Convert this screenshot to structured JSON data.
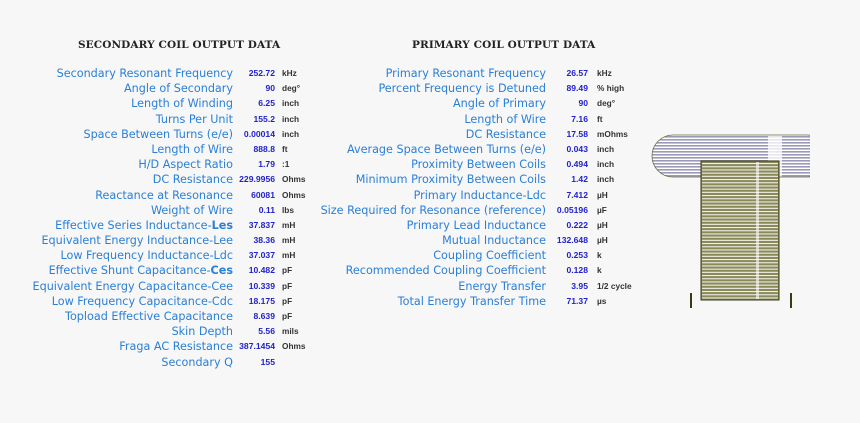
{
  "secondary": {
    "title": "SECONDARY COIL OUTPUT DATA",
    "rows": [
      {
        "label": "Secondary Resonant Frequency",
        "value": "252.72",
        "unit": "kHz"
      },
      {
        "label": "Angle of Secondary",
        "value": "90",
        "unit": "deg°"
      },
      {
        "label": "Length of Winding",
        "value": "6.25",
        "unit": "inch"
      },
      {
        "label": "Turns Per Unit",
        "value": "155.2",
        "unit": "inch"
      },
      {
        "label": "Space Between Turns (e/e)",
        "value": "0.00014",
        "unit": "inch"
      },
      {
        "label": "Length of Wire",
        "value": "888.8",
        "unit": "ft"
      },
      {
        "label": "H/D Aspect Ratio",
        "value": "1.79",
        "unit": ":1"
      },
      {
        "label": "DC Resistance",
        "value": "229.9956",
        "unit": "Ohms"
      },
      {
        "label": "Reactance at Resonance",
        "value": "60081",
        "unit": "Ohms"
      },
      {
        "label": "Weight of Wire",
        "value": "0.11",
        "unit": "lbs"
      },
      {
        "label": "Effective Series Inductance-",
        "label_bold": "Les",
        "value": "37.837",
        "unit": "mH"
      },
      {
        "label": "Equivalent Energy Inductance-Lee",
        "value": "38.36",
        "unit": "mH"
      },
      {
        "label": "Low Frequency Inductance-Ldc",
        "value": "37.037",
        "unit": "mH"
      },
      {
        "label": "Effective Shunt Capacitance-",
        "label_bold": "Ces",
        "value": "10.482",
        "unit": "pF"
      },
      {
        "label": "Equivalent Energy Capacitance-Cee",
        "value": "10.339",
        "unit": "pF"
      },
      {
        "label": "Low Frequency Capacitance-Cdc",
        "value": "18.175",
        "unit": "pF"
      },
      {
        "label": "Topload Effective Capacitance",
        "value": "8.639",
        "unit": "pF"
      },
      {
        "label": "Skin Depth",
        "value": "5.56",
        "unit": "mils"
      },
      {
        "label": "Fraga AC Resistance",
        "value": "387.1454",
        "unit": "Ohms"
      },
      {
        "label": "Secondary Q",
        "value": "155",
        "unit": ""
      }
    ]
  },
  "primary": {
    "title": "PRIMARY COIL OUTPUT DATA",
    "rows": [
      {
        "label": "Primary Resonant Frequency",
        "value": "26.57",
        "unit": "kHz"
      },
      {
        "label": "Percent Frequency is Detuned",
        "value": "89.49",
        "unit": "% high"
      },
      {
        "label": "Angle of Primary",
        "value": "90",
        "unit": "deg°"
      },
      {
        "label": "Length of Wire",
        "value": "7.16",
        "unit": "ft"
      },
      {
        "label": "DC Resistance",
        "value": "17.58",
        "unit": "mOhms"
      },
      {
        "label": "Average Space Between Turns (e/e)",
        "value": "0.043",
        "unit": "inch"
      },
      {
        "label": "Proximity Between Coils",
        "value": "0.494",
        "unit": "inch"
      },
      {
        "label": "Minimum Proximity Between Coils",
        "value": "1.42",
        "unit": "inch"
      },
      {
        "label": "Primary Inductance-Ldc",
        "value": "7.412",
        "unit": "µH"
      },
      {
        "label": "Size Required for Resonance (reference)",
        "value": "0.05196",
        "unit": "µF"
      },
      {
        "label": "Primary Lead Inductance",
        "value": "0.222",
        "unit": "µH"
      },
      {
        "label": "Mutual Inductance",
        "value": "132.648",
        "unit": "µH"
      },
      {
        "label": "Coupling Coefficient",
        "value": "0.253",
        "unit": "k"
      },
      {
        "label": "Recommended Coupling Coefficient",
        "value": "0.128",
        "unit": "k"
      },
      {
        "label": "Energy Transfer",
        "value": "3.95",
        "unit": "1/2 cycle"
      },
      {
        "label": "Total Energy Transfer Time",
        "value": "71.37",
        "unit": "µs"
      }
    ]
  },
  "diagram": {
    "icon": "tesla-coil-icon",
    "colors": {
      "toroid": "#9a9ab8",
      "winding": "#6b6b3e",
      "winding_dark": "#3a3a14",
      "primary_leads": "#3a3a14"
    }
  }
}
